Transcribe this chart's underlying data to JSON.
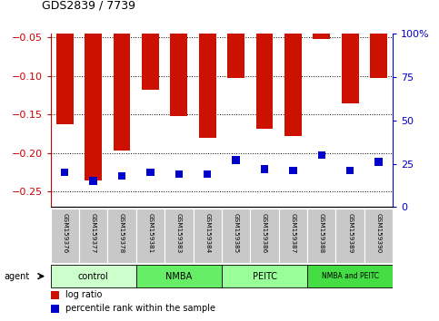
{
  "title": "GDS2839 / 7739",
  "samples": [
    "GSM159376",
    "GSM159377",
    "GSM159378",
    "GSM159381",
    "GSM159383",
    "GSM159384",
    "GSM159385",
    "GSM159386",
    "GSM159387",
    "GSM159388",
    "GSM159389",
    "GSM159390"
  ],
  "log_ratio": [
    -0.163,
    -0.235,
    -0.197,
    -0.118,
    -0.152,
    -0.18,
    -0.102,
    -0.168,
    -0.178,
    -0.052,
    -0.135,
    -0.102
  ],
  "percentile_rank": [
    20,
    15,
    18,
    20,
    19,
    19,
    27,
    22,
    21,
    30,
    21,
    26
  ],
  "groups": [
    {
      "label": "control",
      "start": 0,
      "end": 3,
      "color": "#ccffcc"
    },
    {
      "label": "NMBA",
      "start": 3,
      "end": 6,
      "color": "#66ee66"
    },
    {
      "label": "PEITC",
      "start": 6,
      "end": 9,
      "color": "#99ff99"
    },
    {
      "label": "NMBA and PEITC",
      "start": 9,
      "end": 12,
      "color": "#44dd44"
    }
  ],
  "ylim_left": [
    -0.27,
    -0.045
  ],
  "ylim_right": [
    0,
    100
  ],
  "yticks_left": [
    -0.25,
    -0.2,
    -0.15,
    -0.1,
    -0.05
  ],
  "yticks_right": [
    0,
    25,
    50,
    75,
    100
  ],
  "bar_color": "#cc1100",
  "dot_color": "#0000cc",
  "bar_width": 0.6,
  "xlabel_color": "#cc0000",
  "ylabel_right_color": "#0000cc"
}
